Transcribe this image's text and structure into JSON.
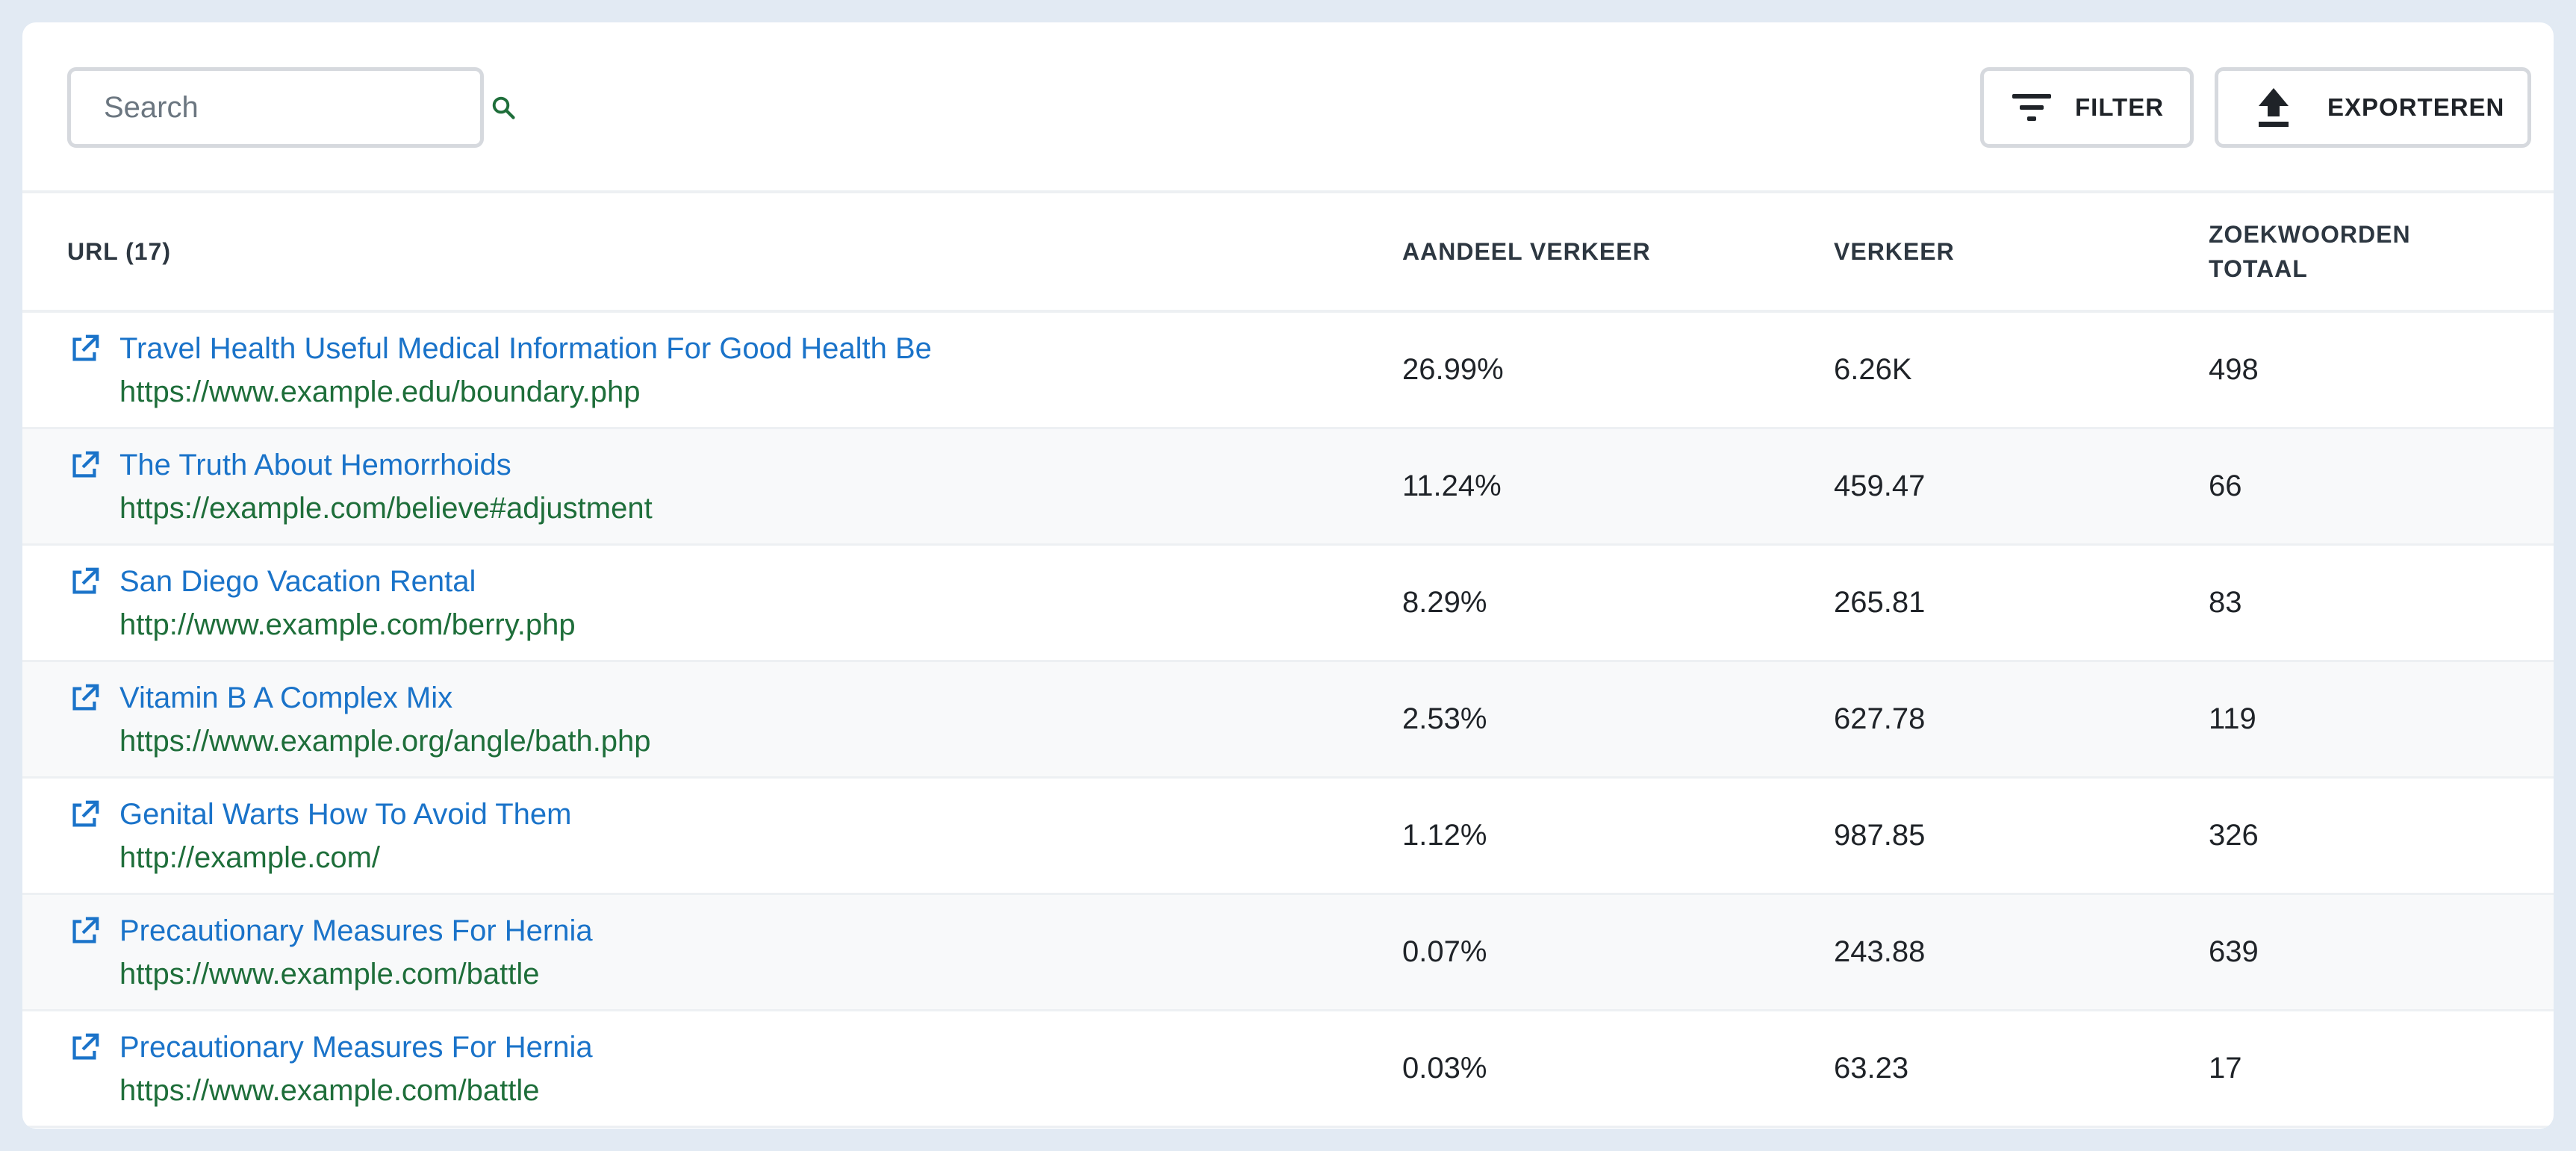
{
  "search": {
    "placeholder": "Search"
  },
  "toolbar": {
    "filter_label": "FILTER",
    "export_label": "EXPORTEREN"
  },
  "table": {
    "headers": {
      "url": "URL (17)",
      "share": "AANDEEL VERKEER",
      "traffic": "VERKEER",
      "keywords_line1": "ZOEKWOORDEN",
      "keywords_line2": "TOTAAL"
    },
    "rows": [
      {
        "title": "Travel Health Useful Medical Information For Good Health Be",
        "url": "https://www.example.edu/boundary.php",
        "share": "26.99%",
        "traffic": "6.26K",
        "keywords": "498"
      },
      {
        "title": "The Truth About Hemorrhoids",
        "url": "https://example.com/believe#adjustment",
        "share": "11.24%",
        "traffic": "459.47",
        "keywords": "66"
      },
      {
        "title": "San Diego Vacation Rental",
        "url": "http://www.example.com/berry.php",
        "share": "8.29%",
        "traffic": "265.81",
        "keywords": "83"
      },
      {
        "title": "Vitamin B A Complex Mix",
        "url": "https://www.example.org/angle/bath.php",
        "share": "2.53%",
        "traffic": "627.78",
        "keywords": "119"
      },
      {
        "title": "Genital Warts How To Avoid Them",
        "url": "http://example.com/",
        "share": "1.12%",
        "traffic": "987.85",
        "keywords": "326"
      },
      {
        "title": "Precautionary Measures For Hernia",
        "url": "https://www.example.com/battle",
        "share": "0.07%",
        "traffic": "243.88",
        "keywords": "639"
      },
      {
        "title": "Precautionary Measures For Hernia",
        "url": "https://www.example.com/battle",
        "share": "0.03%",
        "traffic": "63.23",
        "keywords": "17"
      }
    ]
  },
  "colors": {
    "link": "#1a73c9",
    "url": "#1e6e3a",
    "search_icon": "#1e6e3a",
    "border": "#d6d9de",
    "page_bg": "#e2eaf3"
  },
  "icons": {
    "search": "search-icon",
    "filter": "filter-icon",
    "export": "upload-icon",
    "row_link": "external-link-icon"
  }
}
